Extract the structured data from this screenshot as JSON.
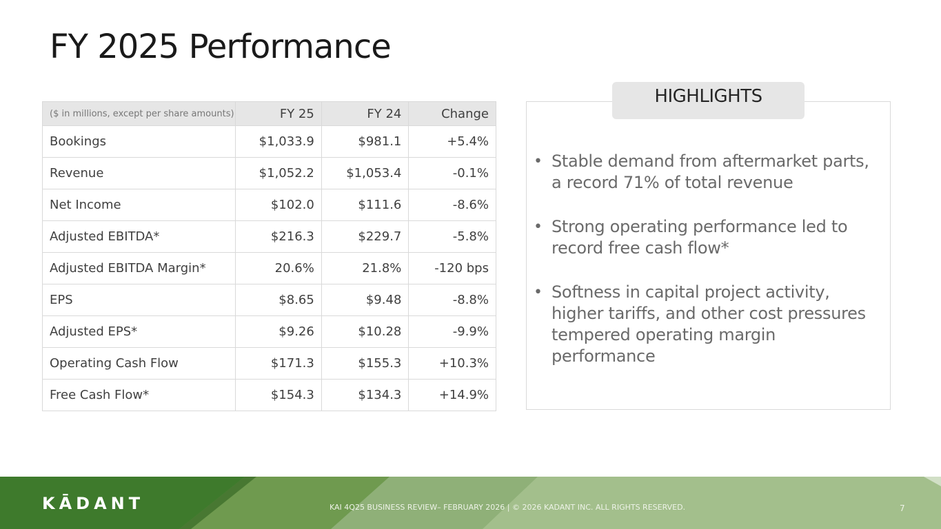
{
  "slide": {
    "title": "FY 2025 Performance"
  },
  "table": {
    "unit_note": "($ in millions, except per share amounts)",
    "headers": [
      "FY 25",
      "FY 24",
      "Change"
    ],
    "rows": [
      {
        "label": "Bookings",
        "fy25": "$1,033.9",
        "fy24": "$981.1",
        "change": "+5.4%"
      },
      {
        "label": "Revenue",
        "fy25": "$1,052.2",
        "fy24": "$1,053.4",
        "change": "-0.1%"
      },
      {
        "label": "Net Income",
        "fy25": "$102.0",
        "fy24": "$111.6",
        "change": "-8.6%"
      },
      {
        "label": "Adjusted EBITDA*",
        "fy25": "$216.3",
        "fy24": "$229.7",
        "change": "-5.8%"
      },
      {
        "label": "Adjusted EBITDA Margin*",
        "fy25": "20.6%",
        "fy24": "21.8%",
        "change": "-120 bps"
      },
      {
        "label": "EPS",
        "fy25": "$8.65",
        "fy24": "$9.48",
        "change": "-8.8%"
      },
      {
        "label": "Adjusted EPS*",
        "fy25": "$9.26",
        "fy24": "$10.28",
        "change": "-9.9%"
      },
      {
        "label": "Operating Cash Flow",
        "fy25": "$171.3",
        "fy24": "$155.3",
        "change": "+10.3%"
      },
      {
        "label": "Free Cash Flow*",
        "fy25": "$154.3",
        "fy24": "$134.3",
        "change": "+14.9%"
      }
    ]
  },
  "highlights": {
    "heading": "HIGHLIGHTS",
    "bullet_glyph": "•",
    "items": [
      "Stable demand from aftermarket parts, a record 71% of total revenue",
      "Strong operating performance led to record free cash flow*",
      "Softness in capital project activity, higher tariffs, and other cost pressures tempered operating margin performance"
    ]
  },
  "footer": {
    "logo_text": "KĀDANT",
    "text": "KAI 4Q25 BUSINESS REVIEW– FEBRUARY 2026  |  © 2026 KADANT INC. ALL RIGHTS RESERVED.",
    "page_number": "7",
    "colors": {
      "dark_green": "#3e7a2c",
      "mid_green": "#6f9a4f",
      "light_green": "#a3bf8c"
    }
  }
}
